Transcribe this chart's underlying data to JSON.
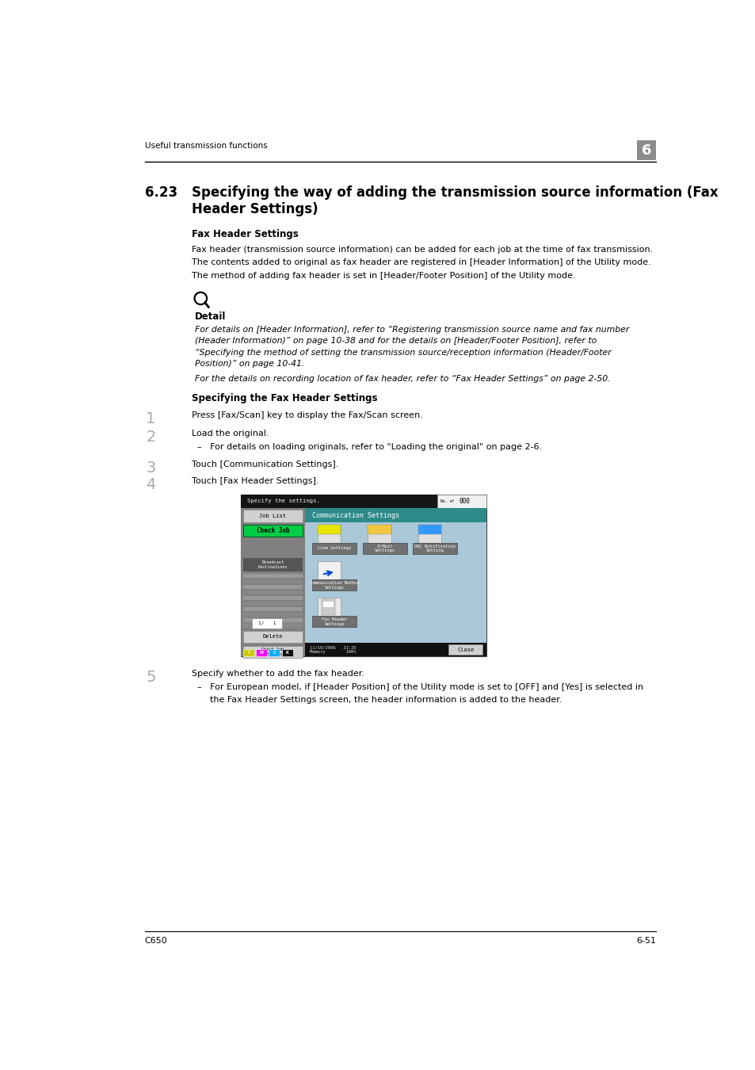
{
  "page_width": 9.54,
  "page_height": 13.5,
  "bg_color": "#ffffff",
  "header_text": "Useful transmission functions",
  "header_number": "6",
  "footer_left": "C650",
  "footer_right": "6-51",
  "section_number": "6.23",
  "section_title_line1": "Specifying the way of adding the transmission source information (Fax",
  "section_title_line2": "Header Settings)",
  "subsection1_title": "Fax Header Settings",
  "para1": "Fax header (transmission source information) can be added for each job at the time of fax transmission.",
  "para2": "The contents added to original as fax header are registered in [Header Information] of the Utility mode.",
  "para3": "The method of adding fax header is set in [Header/Footer Position] of the Utility mode.",
  "detail_label": "Detail",
  "detail_italic1": "For details on [Header Information], refer to “Registering transmission source name and fax number",
  "detail_italic2": "(Header Information)” on page 10-38 and for the details on [Header/Footer Position], refer to",
  "detail_italic3": "“Specifying the method of setting the transmission source/reception information (Header/Footer",
  "detail_italic4": "Position)” on page 10-41.",
  "detail_italic5": "For the details on recording location of fax header, refer to “Fax Header Settings” on page 2-50.",
  "subsection2_title": "Specifying the Fax Header Settings",
  "step1_text": "Press [Fax/Scan] key to display the Fax/Scan screen.",
  "step2_text": "Load the original.",
  "step2_sub": "–   For details on loading originals, refer to \"Loading the original\" on page 2-6.",
  "step3_text": "Touch [Communication Settings].",
  "step4_text": "Touch [Fax Header Settings].",
  "step5_text": "Specify whether to add the fax header.",
  "step5_sub1": "–   For European model, if [Header Position] of the Utility mode is set to [OFF] and [Yes] is selected in",
  "step5_sub2": "     the Fax Header Settings screen, the header information is added to the header.",
  "lm": 0.82,
  "cl": 1.58,
  "rm": 9.15
}
